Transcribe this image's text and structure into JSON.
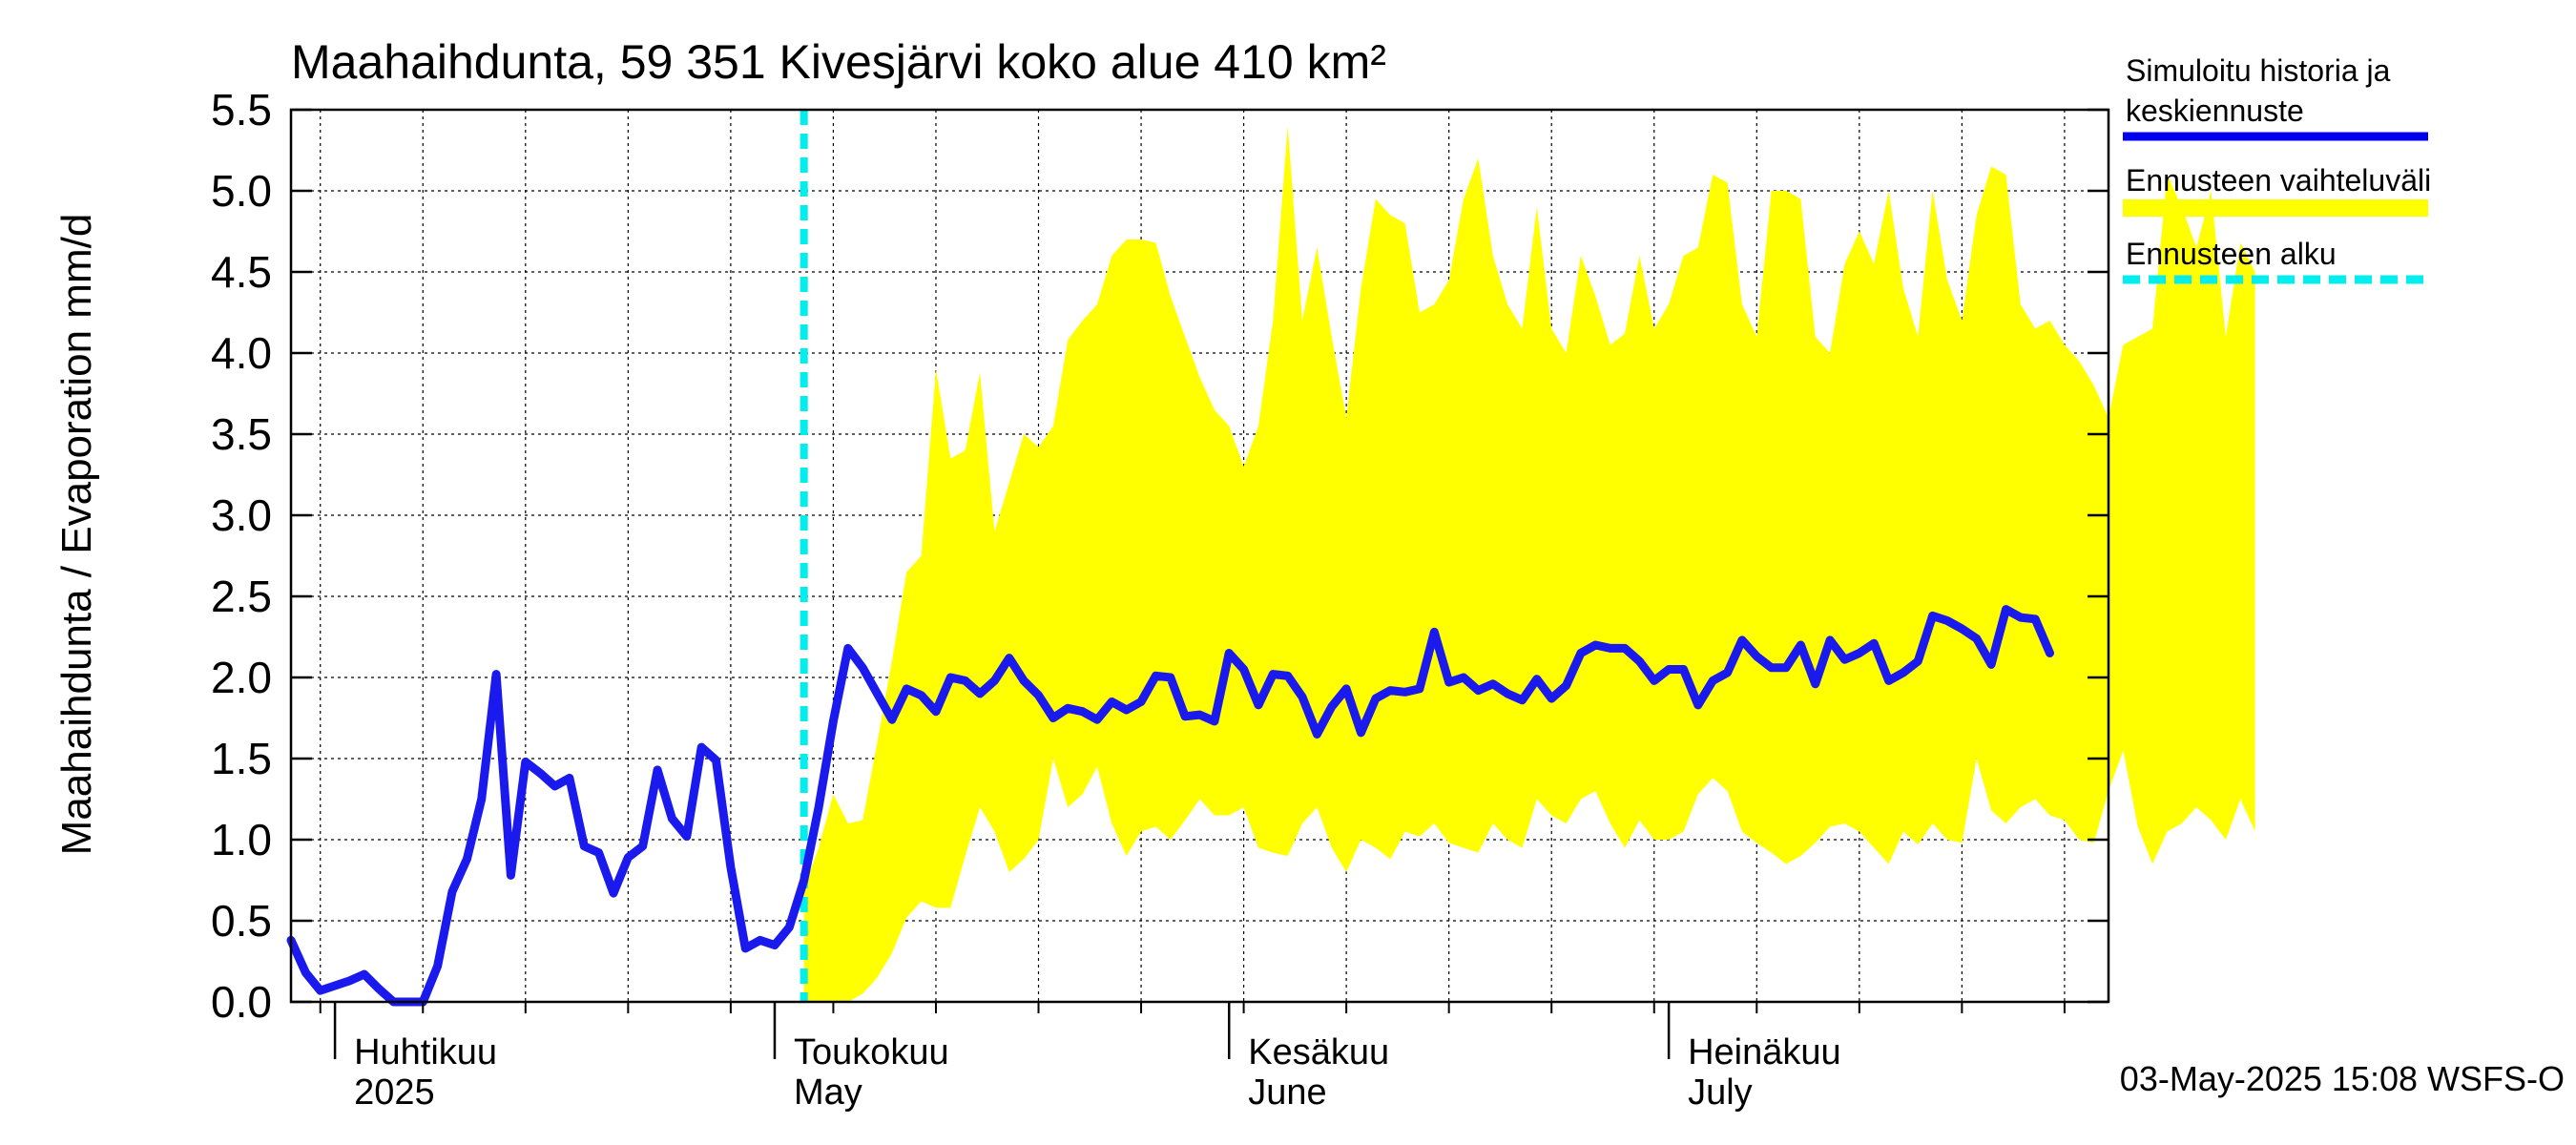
{
  "chart_data": {
    "type": "area",
    "title": "Maahaihdunta, 59 351 Kivesjärvi koko alue 410 km²",
    "ylabel": "Maahaihdunta / Evaporation   mm/d",
    "ylim": [
      0.0,
      5.5
    ],
    "yticks": [
      "0.0",
      "0.5",
      "1.0",
      "1.5",
      "2.0",
      "2.5",
      "3.0",
      "3.5",
      "4.0",
      "4.5",
      "5.0",
      "5.5"
    ],
    "x_range": [
      "2025-03-29",
      "2025-07-31"
    ],
    "grid": true,
    "month_labels": [
      {
        "fi": "Huhtikuu",
        "en": "2025",
        "date": "2025-04-01"
      },
      {
        "fi": "Toukokuu",
        "en": "May",
        "date": "2025-05-01"
      },
      {
        "fi": "Kesäkuu",
        "en": "June",
        "date": "2025-06-01"
      },
      {
        "fi": "Heinäkuu",
        "en": "July",
        "date": "2025-07-01"
      }
    ],
    "forecast_start": "2025-05-03",
    "legend": [
      {
        "label": "Simuloitu historia ja keskiennuste",
        "color": "#0000ee"
      },
      {
        "label": "Ennusteen vaihteluväli",
        "color": "#ffff00"
      },
      {
        "label": "Ennusteen alku",
        "color": "#00eeee"
      }
    ],
    "series": [
      {
        "name": "Simuloitu historia ja keskiennuste",
        "color": "#1a1aee",
        "start_date": "2025-03-29",
        "values": [
          0.38,
          0.18,
          0.07,
          0.1,
          0.13,
          0.17,
          0.08,
          0.0,
          0.0,
          0.0,
          0.22,
          0.68,
          0.88,
          1.25,
          2.02,
          0.78,
          1.48,
          1.41,
          1.33,
          1.38,
          0.96,
          0.92,
          0.67,
          0.89,
          0.96,
          1.43,
          1.13,
          1.02,
          1.57,
          1.49,
          0.83,
          0.33,
          0.38,
          0.35,
          0.46,
          0.75,
          1.2,
          1.73,
          2.18,
          2.06,
          1.9,
          1.74,
          1.93,
          1.89,
          1.79,
          2.0,
          1.98,
          1.9,
          1.98,
          2.12,
          1.98,
          1.89,
          1.75,
          1.81,
          1.79,
          1.74,
          1.85,
          1.8,
          1.85,
          2.01,
          2.0,
          1.76,
          1.77,
          1.73,
          2.15,
          2.05,
          1.83,
          2.02,
          2.01,
          1.88,
          1.65,
          1.82,
          1.93,
          1.66,
          1.87,
          1.92,
          1.91,
          1.93,
          2.28,
          1.97,
          2.0,
          1.92,
          1.96,
          1.9,
          1.86,
          1.99,
          1.87,
          1.95,
          2.15,
          2.2,
          2.18,
          2.18,
          2.1,
          1.98,
          2.05,
          2.05,
          1.83,
          1.98,
          2.03,
          2.23,
          2.13,
          2.06,
          2.06,
          2.2,
          1.96,
          2.23,
          2.11,
          2.15,
          2.21,
          1.98,
          2.03,
          2.1,
          2.38,
          2.35,
          2.3,
          2.24,
          2.08,
          2.42,
          2.37,
          2.36,
          2.15
        ]
      },
      {
        "name": "Ennusteen vaihteluväli (upper)",
        "color": "#ffff00",
        "start_date": "2025-05-03",
        "values": [
          0.7,
          0.95,
          1.28,
          1.1,
          1.12,
          1.6,
          2.1,
          2.65,
          2.75,
          3.9,
          3.35,
          3.4,
          3.88,
          2.9,
          3.2,
          3.5,
          3.42,
          3.55,
          4.08,
          4.2,
          4.3,
          4.6,
          4.7,
          4.7,
          4.68,
          4.35,
          4.1,
          3.85,
          3.65,
          3.55,
          3.3,
          3.55,
          4.2,
          5.4,
          4.2,
          4.65,
          4.1,
          3.6,
          4.4,
          4.95,
          4.85,
          4.8,
          4.25,
          4.3,
          4.45,
          4.95,
          5.2,
          4.6,
          4.3,
          4.15,
          4.9,
          4.15,
          4.0,
          4.6,
          4.35,
          4.05,
          4.12,
          4.6,
          4.15,
          4.3,
          4.6,
          4.65,
          5.1,
          5.05,
          4.3,
          4.1,
          5.0,
          5.0,
          4.95,
          4.1,
          4.0,
          4.55,
          4.75,
          4.55,
          5.0,
          4.4,
          4.1,
          5.0,
          4.45,
          4.2,
          4.85,
          5.15,
          5.1,
          4.3,
          4.15,
          4.2,
          4.05,
          3.95,
          3.8,
          3.6,
          4.05,
          4.1,
          4.15,
          5.1,
          4.9,
          4.65,
          5.0,
          4.1,
          4.68,
          4.5
        ]
      },
      {
        "name": "Ennusteen vaihteluväli (lower)",
        "color": "#ffff00",
        "start_date": "2025-05-03",
        "values": [
          0.0,
          0.0,
          0.0,
          0.0,
          0.05,
          0.15,
          0.3,
          0.52,
          0.62,
          0.58,
          0.58,
          0.9,
          1.2,
          1.05,
          0.8,
          0.88,
          1.0,
          1.5,
          1.2,
          1.28,
          1.45,
          1.1,
          0.9,
          1.05,
          1.08,
          1.0,
          1.12,
          1.25,
          1.15,
          1.15,
          1.2,
          0.95,
          0.92,
          0.9,
          1.1,
          1.2,
          0.95,
          0.8,
          1.0,
          0.95,
          0.88,
          1.05,
          1.02,
          1.1,
          0.98,
          0.95,
          0.92,
          1.1,
          1.0,
          0.95,
          1.25,
          1.15,
          1.1,
          1.25,
          1.3,
          1.1,
          0.95,
          1.12,
          1.0,
          1.0,
          1.05,
          1.28,
          1.38,
          1.3,
          1.05,
          0.98,
          0.92,
          0.85,
          0.9,
          0.98,
          1.08,
          1.1,
          1.05,
          0.95,
          0.85,
          1.05,
          0.97,
          1.1,
          1.0,
          0.98,
          1.5,
          1.18,
          1.1,
          1.2,
          1.25,
          1.15,
          1.12,
          1.0,
          0.98,
          1.3,
          1.55,
          1.08,
          0.85,
          1.05,
          1.1,
          1.2,
          1.12,
          1.0,
          1.25,
          1.05
        ]
      }
    ]
  },
  "footer": {
    "timestamp": "03-May-2025 15:08 WSFS-O"
  }
}
